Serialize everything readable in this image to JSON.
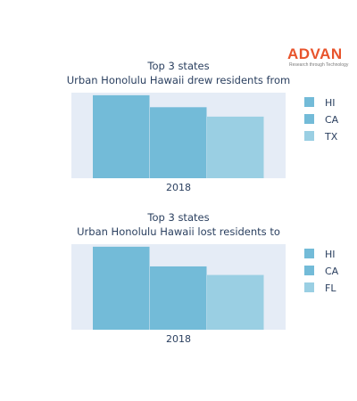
{
  "logo": {
    "name": "ADVAN",
    "tagline": "Research through Technology",
    "color": "#e8542c"
  },
  "colors": {
    "plot_bg": "#e5ecf6",
    "HI": "#73bbd8",
    "CA": "#73bbd8",
    "TX": "#9acfe3",
    "FL": "#9acfe3"
  },
  "chart_data": [
    {
      "type": "bar",
      "title_line1": "Top 3 states",
      "title_line2": "Urban Honolulu Hawaii drew residents from",
      "categories": [
        "2018"
      ],
      "series": [
        {
          "name": "HI",
          "values": [
            97
          ]
        },
        {
          "name": "CA",
          "values": [
            83
          ]
        },
        {
          "name": "TX",
          "values": [
            72
          ]
        }
      ],
      "ylim": [
        0,
        100
      ],
      "legend_position": "right"
    },
    {
      "type": "bar",
      "title_line1": "Top 3 states",
      "title_line2": "Urban Honolulu Hawaii lost residents to",
      "categories": [
        "2018"
      ],
      "series": [
        {
          "name": "HI",
          "values": [
            97
          ]
        },
        {
          "name": "CA",
          "values": [
            74
          ]
        },
        {
          "name": "FL",
          "values": [
            64
          ]
        }
      ],
      "ylim": [
        0,
        100
      ],
      "legend_position": "right"
    }
  ]
}
